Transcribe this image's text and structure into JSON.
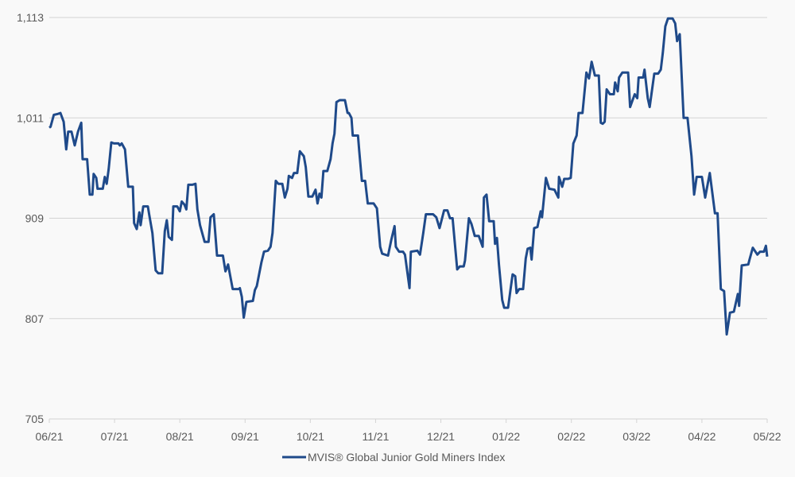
{
  "chart_data": {
    "type": "line",
    "title": "",
    "xlabel": "",
    "ylabel": "",
    "ylim": [
      705,
      1113
    ],
    "yticks": [
      705,
      807,
      909,
      1011,
      1113
    ],
    "ytick_labels": [
      "705",
      "807",
      "909",
      "1,011",
      "1,113"
    ],
    "xlim": [
      0,
      11
    ],
    "x_units": "months since 06/21",
    "xtick_labels": [
      "06/21",
      "07/21",
      "08/21",
      "09/21",
      "10/21",
      "11/21",
      "12/21",
      "01/22",
      "02/22",
      "03/22",
      "04/22",
      "05/22"
    ],
    "grid": "horizontal",
    "legend_position": "bottom",
    "series": [
      {
        "name": "MVIS® Global Junior Gold Miners Index",
        "color": "#1f4a8a",
        "x": [
          0.0,
          0.02,
          0.07,
          0.13,
          0.17,
          0.22,
          0.26,
          0.29,
          0.34,
          0.39,
          0.44,
          0.49,
          0.51,
          0.58,
          0.62,
          0.66,
          0.68,
          0.72,
          0.74,
          0.82,
          0.85,
          0.88,
          0.91,
          0.95,
          0.99,
          1.06,
          1.08,
          1.11,
          1.16,
          1.21,
          1.28,
          1.3,
          1.34,
          1.38,
          1.4,
          1.44,
          1.51,
          1.53,
          1.58,
          1.63,
          1.67,
          1.73,
          1.77,
          1.8,
          1.83,
          1.88,
          1.9,
          1.96,
          2.0,
          2.03,
          2.07,
          2.1,
          2.13,
          2.19,
          2.24,
          2.27,
          2.31,
          2.38,
          2.44,
          2.47,
          2.52,
          2.57,
          2.66,
          2.7,
          2.74,
          2.81,
          2.9,
          2.92,
          2.95,
          2.98,
          3.02,
          3.12,
          3.15,
          3.18,
          3.25,
          3.29,
          3.35,
          3.39,
          3.42,
          3.47,
          3.51,
          3.57,
          3.61,
          3.65,
          3.67,
          3.72,
          3.75,
          3.8,
          3.84,
          3.9,
          3.93,
          3.97,
          4.03,
          4.08,
          4.11,
          4.14,
          4.17,
          4.2,
          4.26,
          4.31,
          4.34,
          4.37,
          4.4,
          4.45,
          4.53,
          4.57,
          4.59,
          4.63,
          4.65,
          4.73,
          4.75,
          4.79,
          4.84,
          4.88,
          4.97,
          5.02,
          5.07,
          5.1,
          5.19,
          5.24,
          5.29,
          5.31,
          5.36,
          5.42,
          5.45,
          5.52,
          5.54,
          5.64,
          5.68,
          5.73,
          5.77,
          5.88,
          5.93,
          5.98,
          6.05,
          6.1,
          6.14,
          6.18,
          6.25,
          6.29,
          6.35,
          6.37,
          6.43,
          6.47,
          6.52,
          6.58,
          6.64,
          6.66,
          6.7,
          6.74,
          6.81,
          6.83,
          6.86,
          6.89,
          6.94,
          6.97,
          7.03,
          7.07,
          7.1,
          7.14,
          7.16,
          7.2,
          7.26,
          7.3,
          7.33,
          7.37,
          7.39,
          7.43,
          7.48,
          7.53,
          7.55,
          7.61,
          7.66,
          7.74,
          7.8,
          7.81,
          7.86,
          7.89,
          7.95,
          7.99,
          8.03,
          8.08,
          8.11,
          8.17,
          8.23,
          8.27,
          8.31,
          8.36,
          8.42,
          8.45,
          8.48,
          8.51,
          8.54,
          8.59,
          8.65,
          8.67,
          8.71,
          8.73,
          8.78,
          8.87,
          8.9,
          8.97,
          9.01,
          9.03,
          9.1,
          9.12,
          9.17,
          9.2,
          9.27,
          9.33,
          9.37,
          9.4,
          9.44,
          9.48,
          9.55,
          9.59,
          9.62,
          9.66,
          9.72,
          9.78,
          9.84,
          9.88,
          9.92,
          10.0,
          10.05,
          10.12,
          10.2,
          10.24,
          10.29,
          10.34,
          10.38,
          10.43,
          10.49,
          10.55,
          10.57,
          10.61,
          10.71,
          10.73,
          10.78,
          10.85,
          10.89,
          10.95,
          10.98,
          11.0
        ],
        "y": [
          1001,
          1002,
          1014,
          1015,
          1016,
          1007,
          979,
          997,
          997,
          983,
          997,
          1006,
          969,
          969,
          933,
          933,
          954,
          950,
          939,
          939,
          951,
          944,
          959,
          986,
          985,
          985,
          983,
          985,
          979,
          941,
          941,
          904,
          898,
          915,
          902,
          921,
          921,
          913,
          894,
          856,
          853,
          853,
          896,
          907,
          890,
          887,
          921,
          921,
          916,
          926,
          923,
          918,
          943,
          943,
          944,
          918,
          902,
          885,
          885,
          910,
          913,
          871,
          871,
          855,
          862,
          837,
          837,
          838,
          829,
          808,
          824,
          825,
          836,
          840,
          864,
          875,
          876,
          880,
          894,
          947,
          944,
          944,
          930,
          939,
          952,
          950,
          955,
          955,
          977,
          972,
          961,
          931,
          931,
          938,
          924,
          934,
          930,
          957,
          957,
          969,
          985,
          995,
          1027,
          1029,
          1029,
          1016,
          1016,
          1011,
          993,
          993,
          977,
          947,
          947,
          924,
          924,
          919,
          880,
          873,
          871,
          887,
          901,
          880,
          875,
          875,
          872,
          838,
          875,
          876,
          872,
          894,
          913,
          913,
          910,
          899,
          917,
          917,
          909,
          909,
          857,
          860,
          860,
          866,
          909,
          903,
          891,
          891,
          880,
          930,
          933,
          906,
          906,
          883,
          889,
          862,
          826,
          818,
          818,
          838,
          852,
          850,
          833,
          837,
          837,
          868,
          878,
          879,
          867,
          899,
          900,
          916,
          910,
          950,
          939,
          938,
          930,
          951,
          941,
          949,
          949,
          950,
          985,
          993,
          1016,
          1016,
          1057,
          1051,
          1068,
          1054,
          1054,
          1006,
          1005,
          1007,
          1040,
          1035,
          1035,
          1047,
          1038,
          1052,
          1057,
          1057,
          1022,
          1035,
          1031,
          1052,
          1052,
          1060,
          1031,
          1022,
          1056,
          1056,
          1060,
          1077,
          1104,
          1112,
          1112,
          1107,
          1089,
          1096,
          1011,
          1011,
          972,
          933,
          951,
          951,
          930,
          955,
          914,
          914,
          837,
          835,
          791,
          813,
          814,
          832,
          820,
          861,
          862,
          867,
          879,
          872,
          875,
          875,
          881,
          870
        ]
      }
    ]
  }
}
